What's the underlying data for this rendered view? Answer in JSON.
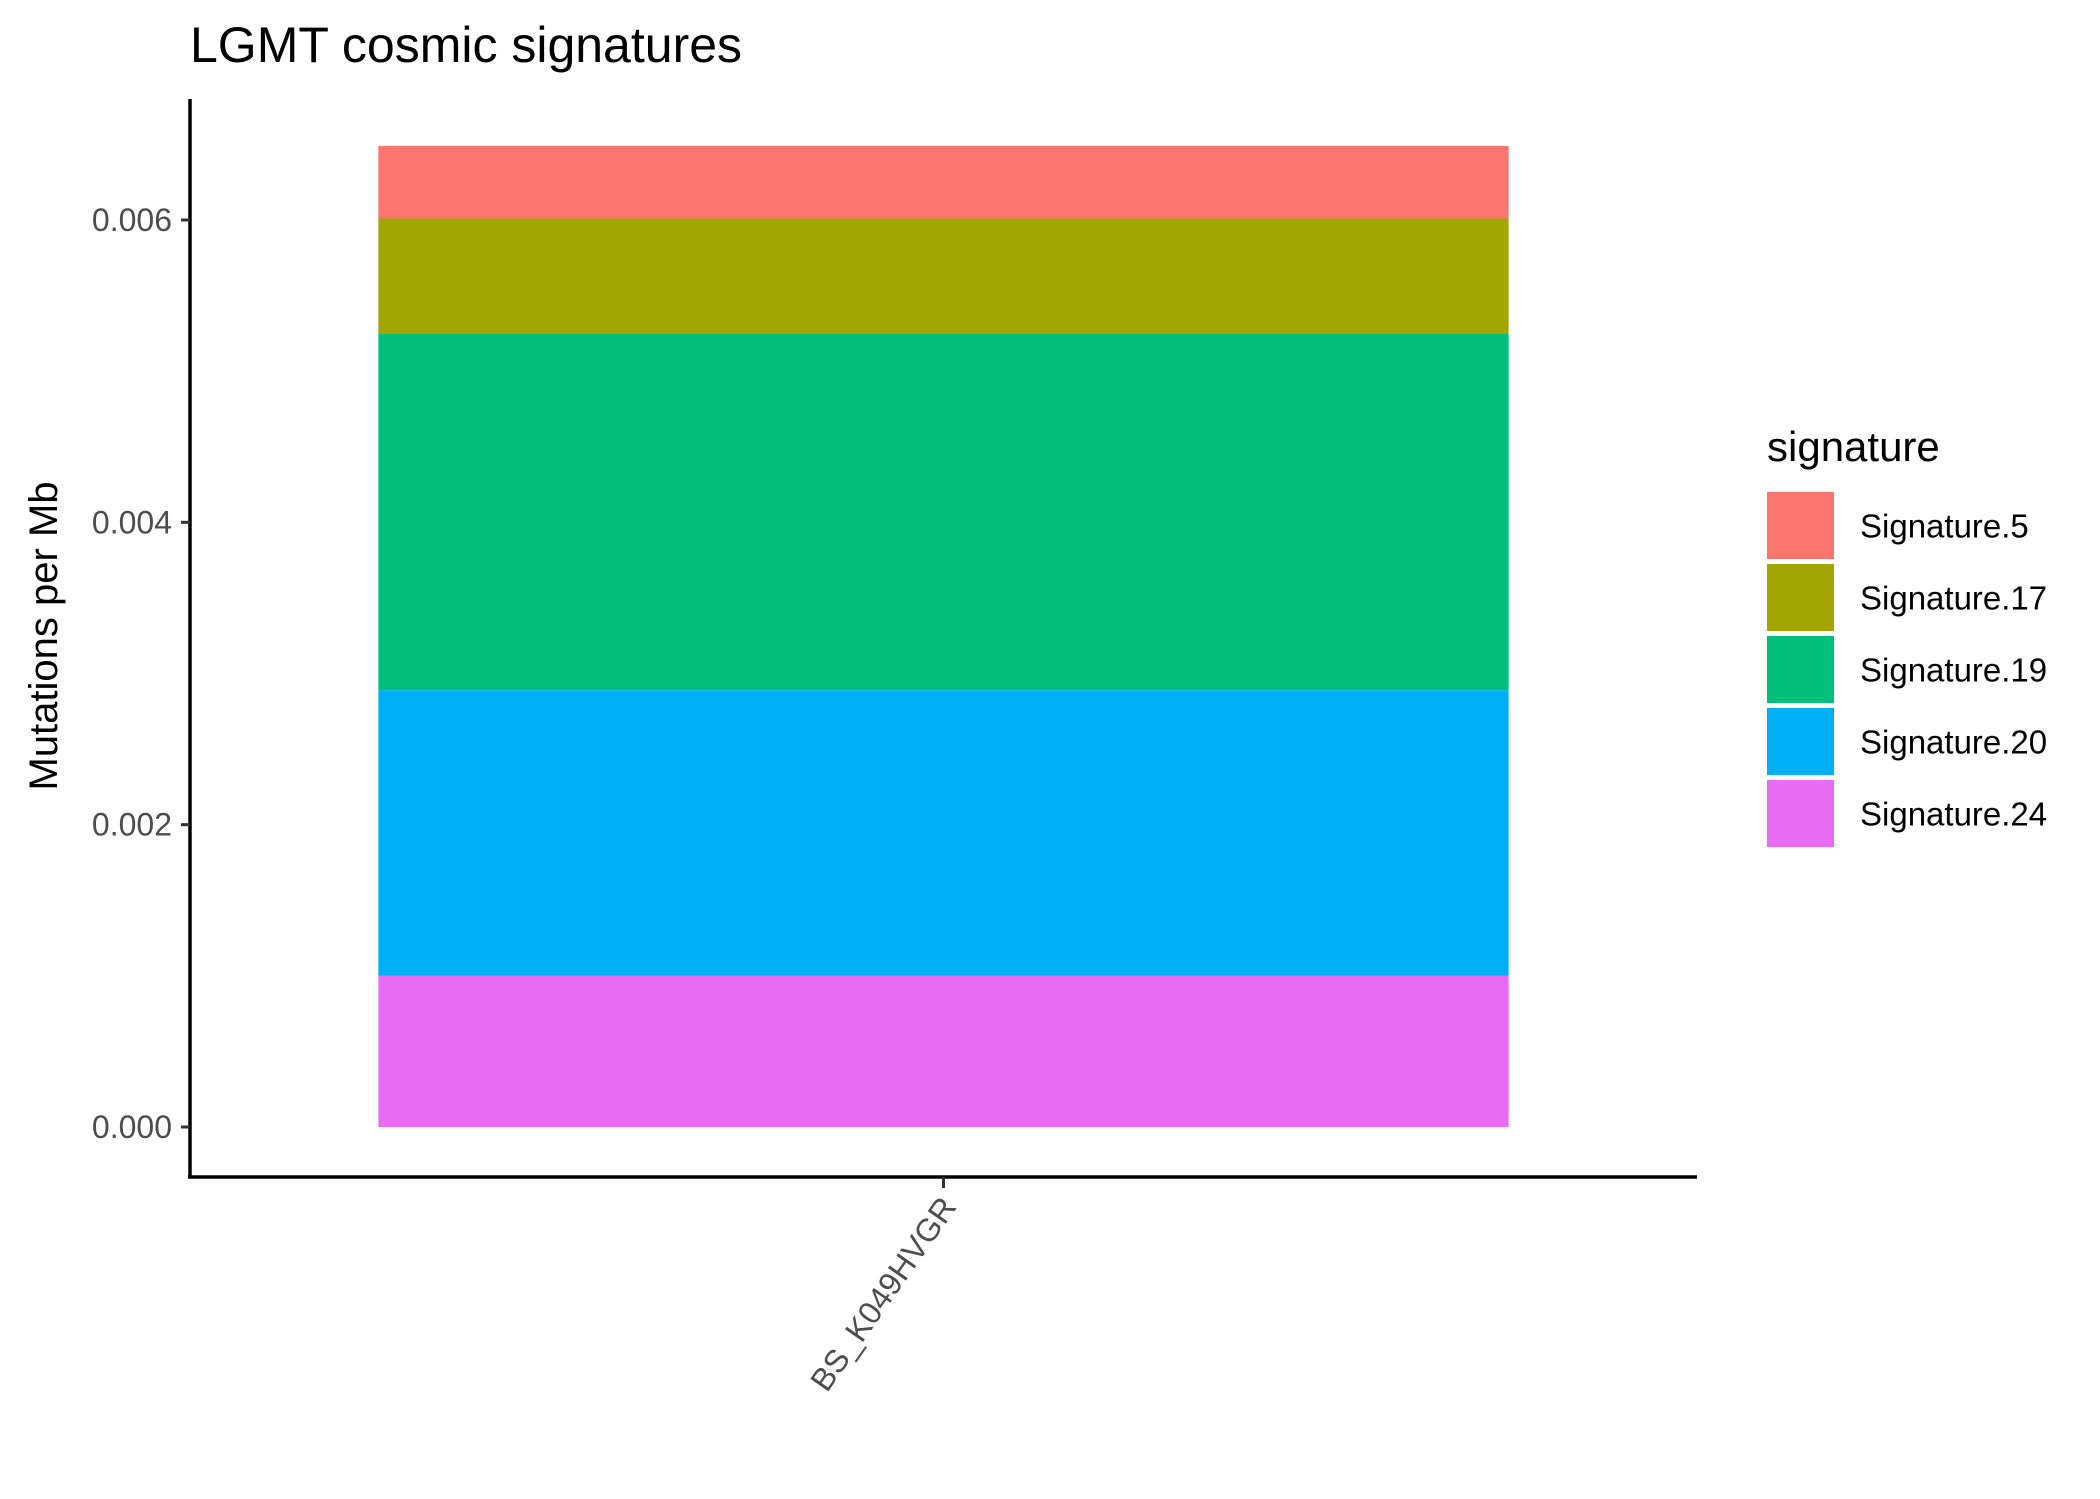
{
  "chart_data": {
    "type": "bar",
    "stacked": true,
    "title": "LGMT cosmic signatures",
    "xlabel": "",
    "ylabel": "Mutations per Mb",
    "categories": [
      "BS_K049HVGR"
    ],
    "ylim": [
      -0.00033,
      0.0068
    ],
    "yticks": [
      0.0,
      0.002,
      0.004,
      0.006
    ],
    "ytick_labels": [
      "0.000",
      "0.002",
      "0.004",
      "0.006"
    ],
    "grid": false,
    "legend": {
      "title": "signature",
      "position": "right"
    },
    "series": [
      {
        "name": "Signature.5",
        "color": "#F8766D",
        "values": [
          0.00048
        ]
      },
      {
        "name": "Signature.17",
        "color": "#A3A500",
        "values": [
          0.00076
        ]
      },
      {
        "name": "Signature.19",
        "color": "#00BF7D",
        "values": [
          0.00236
        ]
      },
      {
        "name": "Signature.20",
        "color": "#00B0F6",
        "values": [
          0.00189
        ]
      },
      {
        "name": "Signature.24",
        "color": "#E76BF3",
        "values": [
          0.001
        ]
      }
    ]
  }
}
